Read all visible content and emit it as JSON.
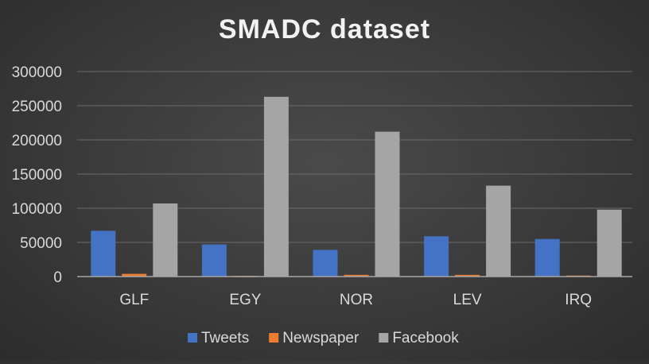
{
  "chart_data": {
    "type": "bar",
    "title": "SMADC dataset",
    "categories": [
      "GLF",
      "EGY",
      "NOR",
      "LEV",
      "IRQ"
    ],
    "series": [
      {
        "name": "Tweets",
        "color": "#4472c4",
        "values": [
          67000,
          47000,
          39000,
          59000,
          55000
        ]
      },
      {
        "name": "Newspaper",
        "color": "#ed7d31",
        "values": [
          4000,
          1000,
          2500,
          2500,
          1500
        ]
      },
      {
        "name": "Facebook",
        "color": "#a5a5a5",
        "values": [
          107000,
          263000,
          212000,
          133000,
          98000
        ]
      }
    ],
    "ylim": [
      0,
      300000
    ],
    "yticks": [
      "0",
      "50000",
      "100000",
      "150000",
      "200000",
      "250000",
      "300000"
    ],
    "grid": true,
    "legend_position": "bottom"
  }
}
